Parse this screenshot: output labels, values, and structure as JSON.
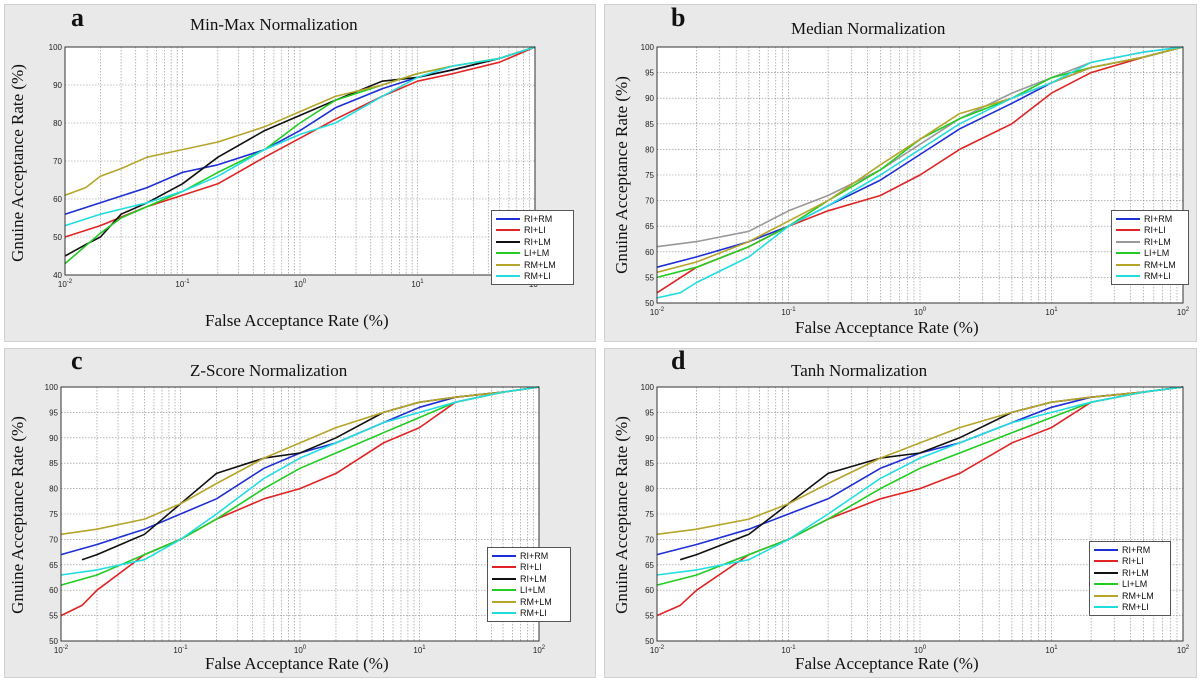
{
  "colors": {
    "RI+RM": "#1f2fd6",
    "RI+LI": "#e02424",
    "RI+LM": "#111111",
    "LI+LM": "#22cc22",
    "RM+LM": "#b5a52a",
    "RM+LI": "#22dde0",
    "RI+LM(b)": "#999999"
  },
  "chart_data": [
    {
      "id": "a",
      "type": "line",
      "letter": "a",
      "title": "Min-Max Normalization",
      "xlabel": "False Acceptance Rate (%)",
      "ylabel": "Gnuine Acceptance Rate (%)",
      "xscale": "log",
      "xlim": [
        0.01,
        100
      ],
      "ylim": [
        40,
        100
      ],
      "yticks": [
        40,
        50,
        60,
        70,
        80,
        90,
        100
      ],
      "xtick_labels": [
        "10^-2",
        "10^-1",
        "10^0",
        "10^1",
        "10^2"
      ],
      "grid": true,
      "legend_position": "lower-right",
      "legend": [
        "RI+RM",
        "RI+LI",
        "RI+LM",
        "LI+LM",
        "RM+LM",
        "RM+LI"
      ],
      "series": [
        {
          "name": "RI+RM",
          "color_key": "RI+RM",
          "x": [
            0.01,
            0.02,
            0.05,
            0.1,
            0.2,
            0.5,
            1,
            2,
            5,
            10,
            20,
            50,
            100
          ],
          "y": [
            56,
            59,
            63,
            67,
            69,
            73,
            78,
            84,
            89,
            92,
            94,
            97,
            100
          ]
        },
        {
          "name": "RI+LI",
          "color_key": "RI+LI",
          "x": [
            0.01,
            0.02,
            0.05,
            0.1,
            0.2,
            0.5,
            1,
            2,
            5,
            10,
            20,
            50,
            100
          ],
          "y": [
            50,
            53,
            58,
            61,
            64,
            71,
            76,
            81,
            87,
            91,
            93,
            96,
            100
          ]
        },
        {
          "name": "RI+LM",
          "color_key": "RI+LM",
          "x": [
            0.01,
            0.015,
            0.02,
            0.03,
            0.05,
            0.1,
            0.2,
            0.5,
            1,
            2,
            5,
            10,
            20,
            50,
            100
          ],
          "y": [
            45,
            48,
            50,
            56,
            59,
            64,
            71,
            78,
            82,
            86,
            91,
            92,
            94,
            97,
            100
          ]
        },
        {
          "name": "LI+LM",
          "color_key": "LI+LM",
          "x": [
            0.01,
            0.02,
            0.03,
            0.05,
            0.1,
            0.2,
            0.5,
            1,
            2,
            5,
            10,
            20,
            50,
            100
          ],
          "y": [
            43,
            51,
            55,
            58,
            62,
            67,
            73,
            80,
            86,
            90,
            93,
            95,
            97,
            100
          ]
        },
        {
          "name": "RM+LM",
          "color_key": "RM+LM",
          "x": [
            0.01,
            0.015,
            0.02,
            0.03,
            0.05,
            0.1,
            0.2,
            0.5,
            1,
            2,
            5,
            10,
            20,
            50,
            100
          ],
          "y": [
            61,
            63,
            66,
            68,
            71,
            73,
            75,
            79,
            83,
            87,
            90,
            93,
            95,
            97,
            100
          ]
        },
        {
          "name": "RM+LI",
          "color_key": "RM+LI",
          "x": [
            0.01,
            0.02,
            0.05,
            0.1,
            0.2,
            0.5,
            1,
            2,
            5,
            10,
            20,
            50,
            100
          ],
          "y": [
            53,
            56,
            59,
            62,
            66,
            73,
            77,
            80,
            87,
            92,
            95,
            97,
            100
          ]
        }
      ]
    },
    {
      "id": "b",
      "type": "line",
      "letter": "b",
      "title": "Median Normalization",
      "xlabel": "False Acceptance Rate (%)",
      "ylabel": "Gnuine Acceptance Rate (%)",
      "xscale": "log",
      "xlim": [
        0.01,
        100
      ],
      "ylim": [
        50,
        100
      ],
      "yticks": [
        50,
        55,
        60,
        65,
        70,
        75,
        80,
        85,
        90,
        95,
        100
      ],
      "xtick_labels": [
        "10^-2",
        "10^-1",
        "10^0",
        "10^1",
        "10^2"
      ],
      "grid": true,
      "legend_position": "lower-right",
      "legend": [
        "RI+RM",
        "RI+LI",
        "RI+LM",
        "LI+LM",
        "RM+LM",
        "RM+LI"
      ],
      "series": [
        {
          "name": "RI+RM",
          "color_key": "RI+RM",
          "x": [
            0.01,
            0.02,
            0.05,
            0.1,
            0.2,
            0.5,
            1,
            2,
            5,
            10,
            20,
            50,
            100
          ],
          "y": [
            57,
            59,
            62,
            65,
            69,
            74,
            79,
            84,
            89,
            93,
            96,
            98,
            100
          ]
        },
        {
          "name": "RI+LI",
          "color_key": "RI+LI",
          "x": [
            0.01,
            0.02,
            0.05,
            0.1,
            0.2,
            0.5,
            1,
            2,
            5,
            10,
            20,
            50,
            100
          ],
          "y": [
            52,
            57,
            61,
            65,
            68,
            71,
            75,
            80,
            85,
            91,
            95,
            98,
            100
          ]
        },
        {
          "name": "RI+LM",
          "color_key": "RI+LM(b)",
          "x": [
            0.01,
            0.02,
            0.05,
            0.1,
            0.2,
            0.5,
            1,
            2,
            5,
            10,
            20,
            50,
            100
          ],
          "y": [
            61,
            62,
            64,
            68,
            71,
            76,
            81,
            86,
            91,
            94,
            97,
            99,
            100
          ]
        },
        {
          "name": "LI+LM",
          "color_key": "LI+LM",
          "x": [
            0.01,
            0.02,
            0.05,
            0.1,
            0.2,
            0.5,
            1,
            2,
            5,
            10,
            20,
            50,
            100
          ],
          "y": [
            55,
            57,
            61,
            65,
            70,
            76,
            82,
            86,
            90,
            94,
            96,
            98,
            100
          ]
        },
        {
          "name": "RM+LM",
          "color_key": "RM+LM",
          "x": [
            0.01,
            0.02,
            0.05,
            0.1,
            0.2,
            0.5,
            1,
            2,
            5,
            10,
            20,
            50,
            100
          ],
          "y": [
            56,
            58,
            62,
            66,
            70,
            77,
            82,
            87,
            90,
            93,
            96,
            98,
            100
          ]
        },
        {
          "name": "RM+LI",
          "color_key": "RM+LI",
          "x": [
            0.01,
            0.015,
            0.02,
            0.05,
            0.1,
            0.2,
            0.5,
            1,
            2,
            5,
            10,
            20,
            50,
            100
          ],
          "y": [
            51,
            52,
            54,
            59,
            65,
            69,
            75,
            80,
            85,
            90,
            93,
            97,
            99,
            100
          ]
        }
      ]
    },
    {
      "id": "c",
      "type": "line",
      "letter": "c",
      "title": "Z-Score Normalization",
      "xlabel": "False Acceptance Rate (%)",
      "ylabel": "Gnuine Acceptance Rate (%)",
      "xscale": "log",
      "xlim": [
        0.01,
        100
      ],
      "ylim": [
        50,
        100
      ],
      "yticks": [
        50,
        55,
        60,
        65,
        70,
        75,
        80,
        85,
        90,
        95,
        100
      ],
      "xtick_labels": [
        "10^-2",
        "10^-1",
        "10^0",
        "10^1",
        "10^2"
      ],
      "grid": true,
      "legend_position": "lower-right",
      "legend": [
        "RI+RM",
        "RI+LI",
        "RI+LM",
        "LI+LM",
        "RM+LM",
        "RM+LI"
      ],
      "series": [
        {
          "name": "RI+RM",
          "color_key": "RI+RM",
          "x": [
            0.01,
            0.02,
            0.05,
            0.1,
            0.2,
            0.5,
            1,
            2,
            5,
            10,
            20,
            50,
            100
          ],
          "y": [
            67,
            69,
            72,
            75,
            78,
            84,
            87,
            89,
            93,
            96,
            98,
            99,
            100
          ]
        },
        {
          "name": "RI+LI",
          "color_key": "RI+LI",
          "x": [
            0.01,
            0.015,
            0.02,
            0.05,
            0.1,
            0.2,
            0.5,
            1,
            2,
            5,
            10,
            20,
            50,
            100
          ],
          "y": [
            55,
            57,
            60,
            67,
            70,
            74,
            78,
            80,
            83,
            89,
            92,
            97,
            99,
            100
          ]
        },
        {
          "name": "RI+LM",
          "color_key": "RI+LM",
          "x": [
            0.015,
            0.02,
            0.05,
            0.1,
            0.2,
            0.5,
            1,
            2,
            5,
            10,
            20,
            50,
            100
          ],
          "y": [
            66,
            67,
            71,
            77,
            83,
            86,
            87,
            90,
            95,
            97,
            98,
            99,
            100
          ]
        },
        {
          "name": "LI+LM",
          "color_key": "LI+LM",
          "x": [
            0.01,
            0.02,
            0.05,
            0.1,
            0.2,
            0.5,
            1,
            2,
            5,
            10,
            20,
            50,
            100
          ],
          "y": [
            61,
            63,
            67,
            70,
            74,
            80,
            84,
            87,
            91,
            94,
            97,
            99,
            100
          ]
        },
        {
          "name": "RM+LM",
          "color_key": "RM+LM",
          "x": [
            0.01,
            0.02,
            0.05,
            0.1,
            0.2,
            0.5,
            1,
            2,
            5,
            10,
            20,
            50,
            100
          ],
          "y": [
            71,
            72,
            74,
            77,
            81,
            86,
            89,
            92,
            95,
            97,
            98,
            99,
            100
          ]
        },
        {
          "name": "RM+LI",
          "color_key": "RM+LI",
          "x": [
            0.01,
            0.02,
            0.05,
            0.1,
            0.2,
            0.5,
            1,
            2,
            5,
            10,
            20,
            50,
            100
          ],
          "y": [
            63,
            64,
            66,
            70,
            75,
            82,
            86,
            89,
            93,
            95,
            97,
            99,
            100
          ]
        }
      ]
    },
    {
      "id": "d",
      "type": "line",
      "letter": "d",
      "title": "Tanh Normalization",
      "xlabel": "False Acceptance Rate (%)",
      "ylabel": "Gnuine Acceptance Rate (%)",
      "xscale": "log",
      "xlim": [
        0.01,
        100
      ],
      "ylim": [
        50,
        100
      ],
      "yticks": [
        50,
        55,
        60,
        65,
        70,
        75,
        80,
        85,
        90,
        95,
        100
      ],
      "xtick_labels": [
        "10^-2",
        "10^-1",
        "10^0",
        "10^1",
        "10^2"
      ],
      "grid": true,
      "legend_position": "lower-right",
      "legend": [
        "RI+RM",
        "RI+LI",
        "RI+LM",
        "LI+LM",
        "RM+LM",
        "RM+LI"
      ],
      "series": [
        {
          "name": "RI+RM",
          "color_key": "RI+RM",
          "x": [
            0.01,
            0.02,
            0.05,
            0.1,
            0.2,
            0.5,
            1,
            2,
            5,
            10,
            20,
            50,
            100
          ],
          "y": [
            67,
            69,
            72,
            75,
            78,
            84,
            87,
            89,
            93,
            96,
            98,
            99,
            100
          ]
        },
        {
          "name": "RI+LI",
          "color_key": "RI+LI",
          "x": [
            0.01,
            0.015,
            0.02,
            0.05,
            0.1,
            0.2,
            0.5,
            1,
            2,
            5,
            10,
            20,
            50,
            100
          ],
          "y": [
            55,
            57,
            60,
            67,
            70,
            74,
            78,
            80,
            83,
            89,
            92,
            97,
            99,
            100
          ]
        },
        {
          "name": "RI+LM",
          "color_key": "RI+LM",
          "x": [
            0.015,
            0.02,
            0.05,
            0.1,
            0.2,
            0.5,
            1,
            2,
            5,
            10,
            20,
            50,
            100
          ],
          "y": [
            66,
            67,
            71,
            77,
            83,
            86,
            87,
            90,
            95,
            97,
            98,
            99,
            100
          ]
        },
        {
          "name": "LI+LM",
          "color_key": "LI+LM",
          "x": [
            0.01,
            0.02,
            0.05,
            0.1,
            0.2,
            0.5,
            1,
            2,
            5,
            10,
            20,
            50,
            100
          ],
          "y": [
            61,
            63,
            67,
            70,
            74,
            80,
            84,
            87,
            91,
            94,
            97,
            99,
            100
          ]
        },
        {
          "name": "RM+LM",
          "color_key": "RM+LM",
          "x": [
            0.01,
            0.02,
            0.05,
            0.1,
            0.2,
            0.5,
            1,
            2,
            5,
            10,
            20,
            50,
            100
          ],
          "y": [
            71,
            72,
            74,
            77,
            81,
            86,
            89,
            92,
            95,
            97,
            98,
            99,
            100
          ]
        },
        {
          "name": "RM+LI",
          "color_key": "RM+LI",
          "x": [
            0.01,
            0.02,
            0.05,
            0.1,
            0.2,
            0.5,
            1,
            2,
            5,
            10,
            20,
            50,
            100
          ],
          "y": [
            63,
            64,
            66,
            70,
            75,
            82,
            86,
            89,
            93,
            95,
            97,
            99,
            100
          ]
        }
      ]
    }
  ]
}
